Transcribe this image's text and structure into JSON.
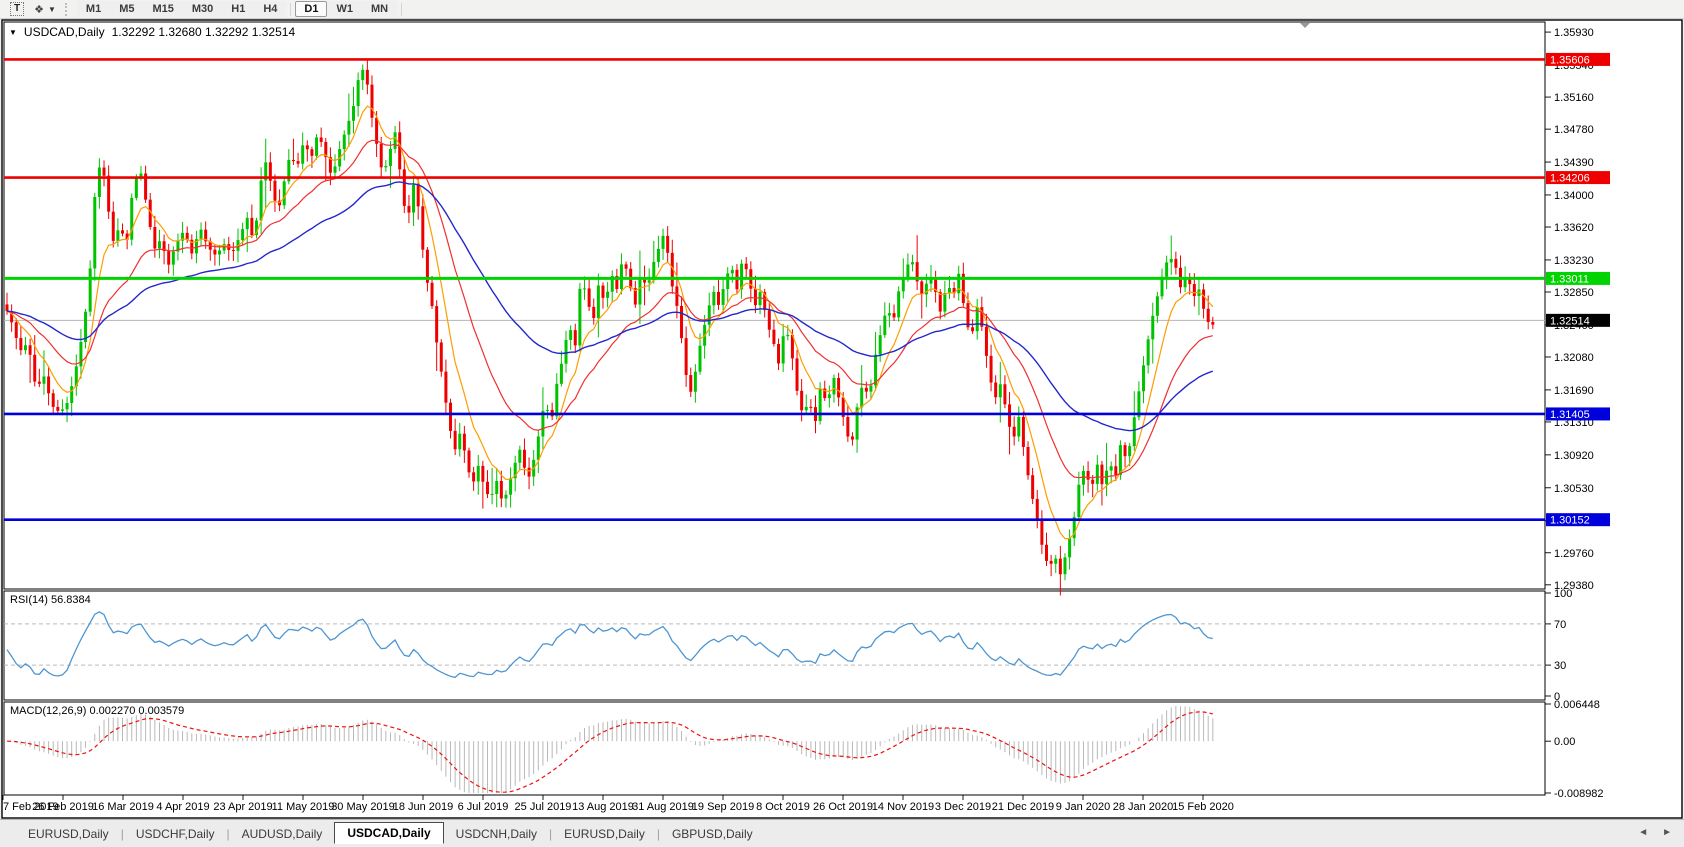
{
  "icons": {
    "text_tool": "T",
    "shapes_tool": "❖",
    "caret_down": "▼",
    "title_dropdown": "▼",
    "tab_scroll_left": "◄",
    "tab_scroll_right": "►"
  },
  "toolbar": {
    "timeframes": [
      "M1",
      "M5",
      "M15",
      "M30",
      "H1",
      "H4",
      "D1",
      "W1",
      "MN"
    ],
    "active_timeframe": "D1"
  },
  "chart": {
    "title_symbol": "USDCAD,Daily",
    "title_ohlc": "1.32292 1.32680 1.32292 1.32514"
  },
  "chart_data": {
    "type": "candlestick",
    "symbol": "USDCAD",
    "timeframe": "Daily",
    "ohlc": {
      "open": "1.32292",
      "high": "1.32680",
      "low": "1.32292",
      "close": "1.32514"
    },
    "colors": {
      "bull": "#00c300",
      "bear": "#ef0000",
      "background": "#ffffff",
      "border": "#000000",
      "current_price_line": "#b4b4b4"
    },
    "price_axis": {
      "ticks": [
        "1.35930",
        "1.35540",
        "1.35160",
        "1.34780",
        "1.34390",
        "1.34000",
        "1.33620",
        "1.33230",
        "1.32850",
        "1.32460",
        "1.32080",
        "1.31690",
        "1.31310",
        "1.30920",
        "1.30530",
        "1.30140",
        "1.29760",
        "1.29380"
      ]
    },
    "hlines": [
      {
        "label": "1.35606",
        "price": 1.35606,
        "color": "#ef0000",
        "width": 2.6
      },
      {
        "label": "1.34206",
        "price": 1.34206,
        "color": "#ef0000",
        "width": 2.6
      },
      {
        "label": "1.33011",
        "price": 1.33011,
        "color": "#00d400",
        "width": 3
      },
      {
        "label": "1.31405",
        "price": 1.31405,
        "color": "#0000dc",
        "width": 2.6
      },
      {
        "label": "1.30152",
        "price": 1.30152,
        "color": "#0000dc",
        "width": 2.6
      }
    ],
    "current_price": {
      "label": "1.32514",
      "price": 1.32514
    },
    "moving_averages": [
      {
        "period": 8,
        "color": "#ff9c00",
        "width": 1.2
      },
      {
        "period": 22,
        "color": "#f03030",
        "width": 1.2
      },
      {
        "period": 55,
        "color": "#2328cc",
        "width": 1.4
      }
    ],
    "close_anchors": [
      [
        5,
        1.3268
      ],
      [
        12,
        1.3248
      ],
      [
        20,
        1.3215
      ],
      [
        28,
        1.3225
      ],
      [
        36,
        1.317
      ],
      [
        44,
        1.3185
      ],
      [
        52,
        1.315
      ],
      [
        60,
        1.3142
      ],
      [
        68,
        1.3155
      ],
      [
        76,
        1.3195
      ],
      [
        84,
        1.3245
      ],
      [
        90,
        1.331
      ],
      [
        96,
        1.342
      ],
      [
        102,
        1.3442
      ],
      [
        108,
        1.3385
      ],
      [
        114,
        1.334
      ],
      [
        120,
        1.3368
      ],
      [
        126,
        1.3335
      ],
      [
        133,
        1.341
      ],
      [
        140,
        1.3432
      ],
      [
        147,
        1.3385
      ],
      [
        154,
        1.3335
      ],
      [
        161,
        1.3348
      ],
      [
        168,
        1.3315
      ],
      [
        176,
        1.3342
      ],
      [
        184,
        1.3358
      ],
      [
        192,
        1.333
      ],
      [
        200,
        1.3362
      ],
      [
        208,
        1.3338
      ],
      [
        216,
        1.3328
      ],
      [
        224,
        1.3342
      ],
      [
        232,
        1.333
      ],
      [
        240,
        1.3352
      ],
      [
        248,
        1.3375
      ],
      [
        254,
        1.334
      ],
      [
        260,
        1.3412
      ],
      [
        266,
        1.344
      ],
      [
        272,
        1.3408
      ],
      [
        278,
        1.3378
      ],
      [
        284,
        1.3415
      ],
      [
        290,
        1.3448
      ],
      [
        297,
        1.3432
      ],
      [
        304,
        1.3465
      ],
      [
        311,
        1.3442
      ],
      [
        318,
        1.3475
      ],
      [
        325,
        1.3448
      ],
      [
        332,
        1.342
      ],
      [
        339,
        1.3452
      ],
      [
        346,
        1.3478
      ],
      [
        353,
        1.3502
      ],
      [
        359,
        1.3542
      ],
      [
        365,
        1.3552
      ],
      [
        371,
        1.3498
      ],
      [
        377,
        1.3458
      ],
      [
        383,
        1.3422
      ],
      [
        389,
        1.3448
      ],
      [
        395,
        1.3475
      ],
      [
        401,
        1.3418
      ],
      [
        407,
        1.3362
      ],
      [
        413,
        1.3415
      ],
      [
        419,
        1.3382
      ],
      [
        425,
        1.3308
      ],
      [
        431,
        1.3278
      ],
      [
        437,
        1.3222
      ],
      [
        443,
        1.3178
      ],
      [
        449,
        1.3128
      ],
      [
        455,
        1.3098
      ],
      [
        461,
        1.3122
      ],
      [
        467,
        1.3078
      ],
      [
        473,
        1.3058
      ],
      [
        479,
        1.3082
      ],
      [
        485,
        1.3048
      ],
      [
        491,
        1.3042
      ],
      [
        497,
        1.3062
      ],
      [
        503,
        1.3032
      ],
      [
        509,
        1.3058
      ],
      [
        515,
        1.3082
      ],
      [
        521,
        1.3102
      ],
      [
        527,
        1.3058
      ],
      [
        533,
        1.3082
      ],
      [
        539,
        1.3118
      ],
      [
        545,
        1.3158
      ],
      [
        551,
        1.3128
      ],
      [
        557,
        1.3178
      ],
      [
        563,
        1.3208
      ],
      [
        569,
        1.3248
      ],
      [
        575,
        1.3218
      ],
      [
        581,
        1.3305
      ],
      [
        587,
        1.3278
      ],
      [
        593,
        1.3248
      ],
      [
        599,
        1.3298
      ],
      [
        605,
        1.3268
      ],
      [
        611,
        1.3308
      ],
      [
        617,
        1.3288
      ],
      [
        623,
        1.3328
      ],
      [
        629,
        1.3298
      ],
      [
        635,
        1.3268
      ],
      [
        641,
        1.3308
      ],
      [
        647,
        1.3288
      ],
      [
        653,
        1.3318
      ],
      [
        659,
        1.3338
      ],
      [
        665,
        1.3358
      ],
      [
        671,
        1.3298
      ],
      [
        677,
        1.3268
      ],
      [
        683,
        1.3218
      ],
      [
        689,
        1.3158
      ],
      [
        695,
        1.3188
      ],
      [
        701,
        1.3228
      ],
      [
        707,
        1.3258
      ],
      [
        713,
        1.3288
      ],
      [
        719,
        1.3268
      ],
      [
        725,
        1.3298
      ],
      [
        731,
        1.3318
      ],
      [
        737,
        1.3288
      ],
      [
        743,
        1.3328
      ],
      [
        749,
        1.3298
      ],
      [
        755,
        1.3268
      ],
      [
        761,
        1.3288
      ],
      [
        767,
        1.3248
      ],
      [
        773,
        1.3228
      ],
      [
        779,
        1.3198
      ],
      [
        785,
        1.3248
      ],
      [
        791,
        1.3218
      ],
      [
        797,
        1.3168
      ],
      [
        803,
        1.3138
      ],
      [
        809,
        1.3158
      ],
      [
        815,
        1.3128
      ],
      [
        821,
        1.3178
      ],
      [
        827,
        1.3148
      ],
      [
        833,
        1.3188
      ],
      [
        839,
        1.3158
      ],
      [
        845,
        1.3128
      ],
      [
        851,
        1.3098
      ],
      [
        857,
        1.3148
      ],
      [
        863,
        1.3178
      ],
      [
        869,
        1.3158
      ],
      [
        875,
        1.3208
      ],
      [
        881,
        1.3238
      ],
      [
        887,
        1.3268
      ],
      [
        893,
        1.3248
      ],
      [
        899,
        1.3288
      ],
      [
        905,
        1.3308
      ],
      [
        911,
        1.3328
      ],
      [
        917,
        1.3298
      ],
      [
        923,
        1.3278
      ],
      [
        929,
        1.3308
      ],
      [
        935,
        1.3288
      ],
      [
        941,
        1.3258
      ],
      [
        947,
        1.3298
      ],
      [
        953,
        1.3278
      ],
      [
        959,
        1.3308
      ],
      [
        965,
        1.3258
      ],
      [
        971,
        1.3228
      ],
      [
        977,
        1.3268
      ],
      [
        983,
        1.3238
      ],
      [
        989,
        1.3188
      ],
      [
        995,
        1.3158
      ],
      [
        1001,
        1.3178
      ],
      [
        1007,
        1.3138
      ],
      [
        1013,
        1.3108
      ],
      [
        1019,
        1.3138
      ],
      [
        1025,
        1.3088
      ],
      [
        1031,
        1.3048
      ],
      [
        1037,
        1.3018
      ],
      [
        1043,
        1.2978
      ],
      [
        1049,
        1.2958
      ],
      [
        1055,
        1.2972
      ],
      [
        1061,
        1.2948
      ],
      [
        1067,
        1.2982
      ],
      [
        1073,
        1.3008
      ],
      [
        1079,
        1.3058
      ],
      [
        1085,
        1.3078
      ],
      [
        1091,
        1.3048
      ],
      [
        1097,
        1.3082
      ],
      [
        1103,
        1.3052
      ],
      [
        1109,
        1.3088
      ],
      [
        1115,
        1.3062
      ],
      [
        1121,
        1.3108
      ],
      [
        1127,
        1.3082
      ],
      [
        1133,
        1.3128
      ],
      [
        1139,
        1.3168
      ],
      [
        1145,
        1.3208
      ],
      [
        1151,
        1.3248
      ],
      [
        1157,
        1.3278
      ],
      [
        1163,
        1.3308
      ],
      [
        1169,
        1.3328
      ],
      [
        1175,
        1.3318
      ],
      [
        1181,
        1.3288
      ],
      [
        1187,
        1.3308
      ],
      [
        1193,
        1.3278
      ],
      [
        1199,
        1.3288
      ],
      [
        1205,
        1.3258
      ],
      [
        1211,
        1.3242
      ],
      [
        1215,
        1.32514
      ]
    ],
    "date_axis": {
      "labels": [
        "7 Feb 2019",
        "26 Feb 2019",
        "16 Mar 2019",
        "4 Apr 2019",
        "23 Apr 2019",
        "11 May 2019",
        "30 May 2019",
        "18 Jun 2019",
        "6 Jul 2019",
        "25 Jul 2019",
        "13 Aug 2019",
        "31 Aug 2019",
        "19 Sep 2019",
        "8 Oct 2019",
        "26 Oct 2019",
        "14 Nov 2019",
        "3 Dec 2019",
        "21 Dec 2019",
        "9 Jan 2020",
        "28 Jan 2020",
        "15 Feb 2020"
      ]
    },
    "rsi": {
      "label": "RSI(14) 56.8384",
      "period": 14,
      "value": "56.8384",
      "axis": [
        {
          "label": "100",
          "value": 100
        },
        {
          "label": "70",
          "value": 70
        },
        {
          "label": "30",
          "value": 30
        },
        {
          "label": "0",
          "value": 0
        }
      ],
      "levels": [
        70,
        30
      ],
      "color": "#4e96d2"
    },
    "macd": {
      "label": "MACD(12,26,9) 0.002270 0.003579",
      "fast": 12,
      "slow": 26,
      "signal": 9,
      "values": [
        "0.002270",
        "0.003579"
      ],
      "axis": [
        {
          "label": "0.006448",
          "value": 0.006448
        },
        {
          "label": "0.00",
          "value": 0
        },
        {
          "label": "-0.008982",
          "value": -0.008982
        }
      ],
      "hist_color": "#b8b8b8",
      "signal_color": "#ee1111"
    }
  },
  "tabs": {
    "items": [
      {
        "label": "EURUSD,Daily",
        "active": false
      },
      {
        "label": "USDCHF,Daily",
        "active": false
      },
      {
        "label": "AUDUSD,Daily",
        "active": false
      },
      {
        "label": "USDCAD,Daily",
        "active": true
      },
      {
        "label": "USDCNH,Daily",
        "active": false
      },
      {
        "label": "EURUSD,Daily",
        "active": false
      },
      {
        "label": "GBPUSD,Daily",
        "active": false
      }
    ]
  }
}
